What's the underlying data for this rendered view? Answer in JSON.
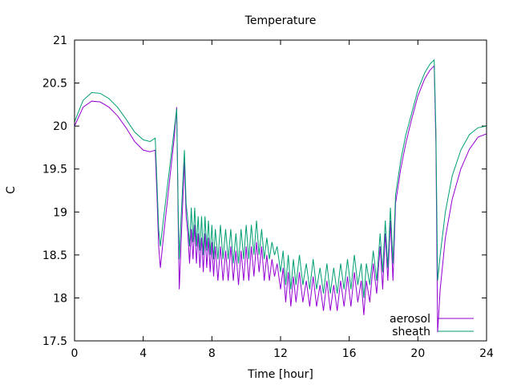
{
  "chart_data": {
    "type": "line",
    "title": "Temperature",
    "xlabel": "Time [hour]",
    "ylabel": "C",
    "xlim": [
      0,
      24
    ],
    "ylim": [
      17.5,
      21
    ],
    "x_ticks": [
      0,
      4,
      8,
      12,
      16,
      20,
      24
    ],
    "x_tick_labels": [
      "0",
      "4",
      "8",
      "12",
      "16",
      "20",
      "24"
    ],
    "y_ticks": [
      17.5,
      18,
      18.5,
      19,
      19.5,
      20,
      20.5,
      21
    ],
    "y_tick_labels": [
      "17.5",
      "18",
      "18.5",
      "19",
      "19.5",
      "20",
      "20.5",
      "21"
    ],
    "grid": false,
    "legend_position": "bottom-right",
    "series": [
      {
        "name": "aerosol",
        "color": "#9400d3",
        "points": [
          [
            0.0,
            20.0
          ],
          [
            0.5,
            20.22
          ],
          [
            1.0,
            20.29
          ],
          [
            1.5,
            20.28
          ],
          [
            2.0,
            20.22
          ],
          [
            2.5,
            20.12
          ],
          [
            3.0,
            19.98
          ],
          [
            3.5,
            19.82
          ],
          [
            4.0,
            19.72
          ],
          [
            4.4,
            19.7
          ],
          [
            4.7,
            19.72
          ],
          [
            4.8,
            19.2
          ],
          [
            4.9,
            18.6
          ],
          [
            5.0,
            18.35
          ],
          [
            5.2,
            18.75
          ],
          [
            5.5,
            19.3
          ],
          [
            5.8,
            19.85
          ],
          [
            5.95,
            20.22
          ],
          [
            6.05,
            18.7
          ],
          [
            6.1,
            18.1
          ],
          [
            6.2,
            18.6
          ],
          [
            6.4,
            19.6
          ],
          [
            6.5,
            18.95
          ],
          [
            6.6,
            18.75
          ],
          [
            6.7,
            18.4
          ],
          [
            6.8,
            18.8
          ],
          [
            6.9,
            18.45
          ],
          [
            7.0,
            18.85
          ],
          [
            7.1,
            18.4
          ],
          [
            7.2,
            18.75
          ],
          [
            7.3,
            18.35
          ],
          [
            7.4,
            18.7
          ],
          [
            7.5,
            18.3
          ],
          [
            7.6,
            18.75
          ],
          [
            7.7,
            18.35
          ],
          [
            7.8,
            18.7
          ],
          [
            7.9,
            18.3
          ],
          [
            8.0,
            18.65
          ],
          [
            8.1,
            18.25
          ],
          [
            8.2,
            18.6
          ],
          [
            8.35,
            18.2
          ],
          [
            8.5,
            18.6
          ],
          [
            8.65,
            18.2
          ],
          [
            8.8,
            18.55
          ],
          [
            8.95,
            18.2
          ],
          [
            9.1,
            18.6
          ],
          [
            9.25,
            18.2
          ],
          [
            9.4,
            18.55
          ],
          [
            9.55,
            18.15
          ],
          [
            9.7,
            18.55
          ],
          [
            9.85,
            18.2
          ],
          [
            10.0,
            18.6
          ],
          [
            10.15,
            18.2
          ],
          [
            10.3,
            18.6
          ],
          [
            10.45,
            18.25
          ],
          [
            10.6,
            18.65
          ],
          [
            10.75,
            18.3
          ],
          [
            10.9,
            18.6
          ],
          [
            11.05,
            18.2
          ],
          [
            11.2,
            18.5
          ],
          [
            11.35,
            18.2
          ],
          [
            11.5,
            18.45
          ],
          [
            11.65,
            18.25
          ],
          [
            11.8,
            18.4
          ],
          [
            12.0,
            18.1
          ],
          [
            12.15,
            18.35
          ],
          [
            12.3,
            17.95
          ],
          [
            12.45,
            18.3
          ],
          [
            12.6,
            17.9
          ],
          [
            12.75,
            18.25
          ],
          [
            12.9,
            17.95
          ],
          [
            13.1,
            18.3
          ],
          [
            13.3,
            17.95
          ],
          [
            13.5,
            18.2
          ],
          [
            13.7,
            17.9
          ],
          [
            13.9,
            18.25
          ],
          [
            14.1,
            17.9
          ],
          [
            14.3,
            18.15
          ],
          [
            14.5,
            17.85
          ],
          [
            14.7,
            18.2
          ],
          [
            14.9,
            17.85
          ],
          [
            15.1,
            18.15
          ],
          [
            15.3,
            17.85
          ],
          [
            15.5,
            18.2
          ],
          [
            15.7,
            17.9
          ],
          [
            15.9,
            18.25
          ],
          [
            16.1,
            17.9
          ],
          [
            16.3,
            18.3
          ],
          [
            16.5,
            17.95
          ],
          [
            16.7,
            18.2
          ],
          [
            16.85,
            17.8
          ],
          [
            17.0,
            18.2
          ],
          [
            17.2,
            17.95
          ],
          [
            17.4,
            18.4
          ],
          [
            17.6,
            18.05
          ],
          [
            17.8,
            18.6
          ],
          [
            17.95,
            18.1
          ],
          [
            18.1,
            18.75
          ],
          [
            18.25,
            18.2
          ],
          [
            18.4,
            18.9
          ],
          [
            18.55,
            18.2
          ],
          [
            18.7,
            19.1
          ],
          [
            19.0,
            19.5
          ],
          [
            19.3,
            19.8
          ],
          [
            19.6,
            20.05
          ],
          [
            20.0,
            20.35
          ],
          [
            20.4,
            20.55
          ],
          [
            20.7,
            20.65
          ],
          [
            20.95,
            20.7
          ],
          [
            21.05,
            19.8
          ],
          [
            21.15,
            17.6
          ],
          [
            21.3,
            18.1
          ],
          [
            21.6,
            18.7
          ],
          [
            22.0,
            19.15
          ],
          [
            22.5,
            19.5
          ],
          [
            23.0,
            19.73
          ],
          [
            23.5,
            19.87
          ],
          [
            24.0,
            19.91
          ]
        ]
      },
      {
        "name": "sheath",
        "color": "#009e73",
        "points": [
          [
            0.0,
            20.05
          ],
          [
            0.5,
            20.3
          ],
          [
            1.0,
            20.39
          ],
          [
            1.5,
            20.38
          ],
          [
            2.0,
            20.32
          ],
          [
            2.5,
            20.22
          ],
          [
            3.0,
            20.08
          ],
          [
            3.5,
            19.93
          ],
          [
            4.0,
            19.84
          ],
          [
            4.4,
            19.82
          ],
          [
            4.7,
            19.86
          ],
          [
            4.8,
            19.35
          ],
          [
            4.9,
            18.8
          ],
          [
            5.0,
            18.6
          ],
          [
            5.2,
            18.95
          ],
          [
            5.5,
            19.45
          ],
          [
            5.8,
            19.95
          ],
          [
            5.95,
            20.2
          ],
          [
            6.05,
            18.9
          ],
          [
            6.1,
            18.45
          ],
          [
            6.2,
            18.9
          ],
          [
            6.4,
            19.72
          ],
          [
            6.5,
            19.1
          ],
          [
            6.6,
            18.9
          ],
          [
            6.7,
            18.6
          ],
          [
            6.8,
            19.05
          ],
          [
            6.9,
            18.65
          ],
          [
            7.0,
            19.05
          ],
          [
            7.1,
            18.6
          ],
          [
            7.2,
            18.95
          ],
          [
            7.3,
            18.55
          ],
          [
            7.4,
            18.95
          ],
          [
            7.5,
            18.5
          ],
          [
            7.6,
            18.95
          ],
          [
            7.7,
            18.55
          ],
          [
            7.8,
            18.9
          ],
          [
            7.9,
            18.5
          ],
          [
            8.0,
            18.85
          ],
          [
            8.1,
            18.45
          ],
          [
            8.2,
            18.8
          ],
          [
            8.35,
            18.45
          ],
          [
            8.5,
            18.85
          ],
          [
            8.65,
            18.45
          ],
          [
            8.8,
            18.8
          ],
          [
            8.95,
            18.45
          ],
          [
            9.1,
            18.8
          ],
          [
            9.25,
            18.4
          ],
          [
            9.4,
            18.75
          ],
          [
            9.55,
            18.4
          ],
          [
            9.7,
            18.8
          ],
          [
            9.85,
            18.45
          ],
          [
            10.0,
            18.85
          ],
          [
            10.15,
            18.45
          ],
          [
            10.3,
            18.85
          ],
          [
            10.45,
            18.5
          ],
          [
            10.6,
            18.9
          ],
          [
            10.75,
            18.5
          ],
          [
            10.9,
            18.8
          ],
          [
            11.05,
            18.45
          ],
          [
            11.2,
            18.7
          ],
          [
            11.35,
            18.45
          ],
          [
            11.5,
            18.65
          ],
          [
            11.65,
            18.5
          ],
          [
            11.8,
            18.6
          ],
          [
            12.0,
            18.3
          ],
          [
            12.15,
            18.55
          ],
          [
            12.3,
            18.15
          ],
          [
            12.45,
            18.5
          ],
          [
            12.6,
            18.1
          ],
          [
            12.75,
            18.45
          ],
          [
            12.9,
            18.15
          ],
          [
            13.1,
            18.5
          ],
          [
            13.3,
            18.15
          ],
          [
            13.5,
            18.4
          ],
          [
            13.7,
            18.1
          ],
          [
            13.9,
            18.45
          ],
          [
            14.1,
            18.1
          ],
          [
            14.3,
            18.35
          ],
          [
            14.5,
            18.05
          ],
          [
            14.7,
            18.4
          ],
          [
            14.9,
            18.05
          ],
          [
            15.1,
            18.35
          ],
          [
            15.3,
            18.05
          ],
          [
            15.5,
            18.4
          ],
          [
            15.7,
            18.1
          ],
          [
            15.9,
            18.45
          ],
          [
            16.1,
            18.1
          ],
          [
            16.3,
            18.5
          ],
          [
            16.5,
            18.15
          ],
          [
            16.7,
            18.4
          ],
          [
            16.85,
            18.0
          ],
          [
            17.0,
            18.4
          ],
          [
            17.2,
            18.15
          ],
          [
            17.4,
            18.55
          ],
          [
            17.6,
            18.2
          ],
          [
            17.8,
            18.75
          ],
          [
            17.95,
            18.3
          ],
          [
            18.1,
            18.9
          ],
          [
            18.25,
            18.35
          ],
          [
            18.4,
            19.05
          ],
          [
            18.55,
            18.4
          ],
          [
            18.7,
            19.2
          ],
          [
            19.0,
            19.6
          ],
          [
            19.3,
            19.9
          ],
          [
            19.6,
            20.12
          ],
          [
            20.0,
            20.42
          ],
          [
            20.4,
            20.62
          ],
          [
            20.7,
            20.72
          ],
          [
            20.95,
            20.77
          ],
          [
            21.05,
            19.95
          ],
          [
            21.15,
            18.2
          ],
          [
            21.3,
            18.5
          ],
          [
            21.6,
            19.0
          ],
          [
            22.0,
            19.42
          ],
          [
            22.5,
            19.72
          ],
          [
            23.0,
            19.9
          ],
          [
            23.5,
            19.98
          ],
          [
            24.0,
            20.0
          ]
        ]
      }
    ]
  }
}
